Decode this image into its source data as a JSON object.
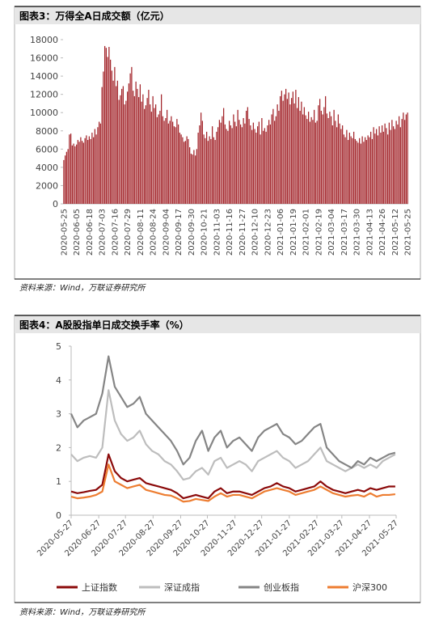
{
  "chart_data": [
    {
      "type": "bar",
      "title": "图表3：万得全A日成交额（亿元）",
      "source": "资料来源：Wind，万联证券研究所",
      "color": "#a3262c",
      "ylim": [
        0,
        18000
      ],
      "yticks": [
        0,
        2000,
        4000,
        6000,
        8000,
        10000,
        12000,
        14000,
        16000,
        18000
      ],
      "categories": [
        "2020-05-25",
        null,
        null,
        null,
        null,
        null,
        null,
        null,
        null,
        "2020-06-05",
        null,
        null,
        null,
        null,
        null,
        null,
        null,
        null,
        "2020-06-18",
        null,
        null,
        null,
        null,
        null,
        null,
        null,
        null,
        "2020-07-03",
        null,
        null,
        null,
        null,
        null,
        null,
        null,
        null,
        "2020-07-16",
        null,
        null,
        null,
        null,
        null,
        null,
        null,
        null,
        "2020-07-29",
        null,
        null,
        null,
        null,
        null,
        null,
        null,
        null,
        "2020-08-11",
        null,
        null,
        null,
        null,
        null,
        null,
        null,
        null,
        "2020-08-24",
        null,
        null,
        null,
        null,
        null,
        null,
        null,
        null,
        "2020-09-04",
        null,
        null,
        null,
        null,
        null,
        null,
        null,
        null,
        "2020-09-17",
        null,
        null,
        null,
        null,
        null,
        null,
        null,
        null,
        "2020-09-30",
        null,
        null,
        null,
        null,
        null,
        null,
        null,
        null,
        "2020-10-21",
        null,
        null,
        null,
        null,
        null,
        null,
        null,
        null,
        "2020-11-03",
        null,
        null,
        null,
        null,
        null,
        null,
        null,
        null,
        "2020-11-16",
        null,
        null,
        null,
        null,
        null,
        null,
        null,
        null,
        "2020-11-27",
        null,
        null,
        null,
        null,
        null,
        null,
        null,
        null,
        "2020-12-10",
        null,
        null,
        null,
        null,
        null,
        null,
        null,
        null,
        "2020-12-23",
        null,
        null,
        null,
        null,
        null,
        null,
        null,
        null,
        "2021-01-06",
        null,
        null,
        null,
        null,
        null,
        null,
        null,
        null,
        "2021-01-19",
        null,
        null,
        null,
        null,
        null,
        null,
        null,
        null,
        "2021-02-01",
        null,
        null,
        null,
        null,
        null,
        null,
        null,
        null,
        "2021-02-19",
        null,
        null,
        null,
        null,
        null,
        null,
        null,
        null,
        "2021-03-04",
        null,
        null,
        null,
        null,
        null,
        null,
        null,
        null,
        "2021-03-17",
        null,
        null,
        null,
        null,
        null,
        null,
        null,
        null,
        "2021-03-30",
        null,
        null,
        null,
        null,
        null,
        null,
        null,
        null,
        "2021-04-13",
        null,
        null,
        null,
        null,
        null,
        null,
        null,
        null,
        "2021-04-26",
        null,
        null,
        null,
        null,
        null,
        null,
        null,
        null,
        "2021-05-12",
        null,
        null,
        null,
        null,
        null,
        null,
        null,
        null,
        "2021-05-25"
      ],
      "values": [
        4800,
        5300,
        5700,
        6000,
        7600,
        7700,
        6400,
        6600,
        6300,
        6500,
        7000,
        6800,
        7300,
        6900,
        6700,
        7200,
        7500,
        7000,
        7400,
        7100,
        7800,
        7300,
        8200,
        7600,
        8400,
        9000,
        8800,
        12800,
        14500,
        17300,
        17100,
        16100,
        17200,
        15800,
        14600,
        13500,
        15000,
        12900,
        13500,
        11400,
        11900,
        12600,
        12900,
        10900,
        11300,
        12300,
        13200,
        14300,
        15000,
        12400,
        11800,
        13400,
        12600,
        11700,
        13100,
        11200,
        12000,
        10400,
        10800,
        11600,
        12500,
        10900,
        10100,
        11800,
        10500,
        10900,
        9500,
        9800,
        10200,
        12000,
        9600,
        9100,
        9400,
        10300,
        8800,
        9100,
        9600,
        9000,
        8500,
        8400,
        9300,
        8700,
        7800,
        7600,
        7300,
        6800,
        6900,
        7400,
        7100,
        6200,
        5500,
        5400,
        5900,
        5300,
        6000,
        7800,
        8600,
        10000,
        9100,
        7600,
        7200,
        7900,
        6900,
        7400,
        7100,
        8500,
        7300,
        7000,
        7900,
        8400,
        9200,
        8900,
        9600,
        10500,
        8700,
        8200,
        8000,
        9100,
        8600,
        8300,
        9800,
        9000,
        8500,
        10300,
        9200,
        8700,
        8400,
        9400,
        8800,
        10200,
        10600,
        9300,
        8600,
        8100,
        8900,
        8200,
        7800,
        8500,
        9000,
        7600,
        9400,
        8000,
        8300,
        7900,
        8600,
        9200,
        8700,
        9800,
        10400,
        9100,
        9600,
        10900,
        10200,
        11800,
        12400,
        11300,
        12000,
        12600,
        11500,
        12200,
        10900,
        11600,
        12300,
        11000,
        12500,
        10500,
        11700,
        10200,
        11200,
        9800,
        10600,
        9700,
        9300,
        10100,
        9000,
        9500,
        9200,
        10300,
        8900,
        9100,
        10800,
        11500,
        10200,
        9800,
        10600,
        11800,
        9900,
        9400,
        10100,
        9600,
        8600,
        10300,
        9100,
        8400,
        9800,
        8800,
        8200,
        8600,
        7600,
        7300,
        8100,
        7000,
        7800,
        7400,
        7200,
        7900,
        7100,
        6900,
        6700,
        7200,
        6600,
        7400,
        6800,
        7300,
        7000,
        7500,
        7300,
        7900,
        7100,
        8400,
        7700,
        8200,
        7500,
        8500,
        7800,
        8600,
        7900,
        8800,
        8300,
        7600,
        8900,
        8100,
        9200,
        8500,
        8200,
        9100,
        8700,
        9600,
        8400,
        9300,
        10000,
        9200,
        9800,
        10000
      ]
    },
    {
      "type": "line",
      "title": "图表4：A股股指单日成交换手率（%）",
      "source": "资料来源：Wind，万联证券研究所",
      "ylim": [
        0,
        5
      ],
      "yticks": [
        0,
        1,
        2,
        3,
        4,
        5
      ],
      "xlim": [
        "2020-05-27",
        "2021-05-27"
      ],
      "xticks": [
        "2020-05-27",
        "2020-06-27",
        "2020-07-27",
        "2020-08-27",
        "2020-09-27",
        "2020-10-27",
        "2020-11-27",
        "2020-12-27",
        "2021-01-27",
        "2021-02-27",
        "2021-03-27",
        "2021-04-27",
        "2021-05-27"
      ],
      "x": [
        "2020-05-27",
        "2020-06-03",
        "2020-06-10",
        "2020-06-17",
        "2020-06-24",
        "2020-07-01",
        "2020-07-08",
        "2020-07-15",
        "2020-07-22",
        "2020-07-29",
        "2020-08-05",
        "2020-08-12",
        "2020-08-19",
        "2020-08-26",
        "2020-09-02",
        "2020-09-09",
        "2020-09-16",
        "2020-09-23",
        "2020-09-30",
        "2020-10-07",
        "2020-10-14",
        "2020-10-21",
        "2020-10-28",
        "2020-11-04",
        "2020-11-11",
        "2020-11-18",
        "2020-11-25",
        "2020-12-02",
        "2020-12-09",
        "2020-12-16",
        "2020-12-23",
        "2020-12-30",
        "2021-01-06",
        "2021-01-13",
        "2021-01-20",
        "2021-01-27",
        "2021-02-03",
        "2021-02-10",
        "2021-02-17",
        "2021-02-24",
        "2021-03-03",
        "2021-03-10",
        "2021-03-17",
        "2021-03-24",
        "2021-03-31",
        "2021-04-07",
        "2021-04-14",
        "2021-04-21",
        "2021-04-28",
        "2021-05-05",
        "2021-05-12",
        "2021-05-19",
        "2021-05-26"
      ],
      "series": [
        {
          "name": "上证指数",
          "color": "#8b0a0a",
          "values": [
            0.7,
            0.65,
            0.68,
            0.72,
            0.75,
            0.9,
            1.8,
            1.3,
            1.1,
            1.0,
            1.05,
            1.1,
            0.95,
            0.9,
            0.85,
            0.8,
            0.75,
            0.65,
            0.5,
            0.55,
            0.6,
            0.55,
            0.5,
            0.7,
            0.8,
            0.65,
            0.7,
            0.7,
            0.65,
            0.6,
            0.7,
            0.8,
            0.85,
            0.95,
            0.85,
            0.8,
            0.7,
            0.75,
            0.8,
            0.85,
            1.0,
            0.85,
            0.75,
            0.7,
            0.65,
            0.7,
            0.75,
            0.7,
            0.8,
            0.75,
            0.8,
            0.85,
            0.85
          ]
        },
        {
          "name": "深证成指",
          "color": "#bdbdbd",
          "values": [
            1.8,
            1.6,
            1.7,
            1.75,
            1.7,
            2.0,
            3.7,
            2.8,
            2.4,
            2.2,
            2.3,
            2.5,
            2.1,
            1.9,
            1.8,
            1.6,
            1.5,
            1.3,
            1.05,
            1.1,
            1.3,
            1.4,
            1.2,
            1.6,
            1.7,
            1.4,
            1.5,
            1.6,
            1.5,
            1.3,
            1.6,
            1.7,
            1.8,
            1.9,
            1.7,
            1.6,
            1.4,
            1.5,
            1.6,
            1.8,
            2.0,
            1.6,
            1.5,
            1.4,
            1.3,
            1.4,
            1.5,
            1.4,
            1.5,
            1.4,
            1.6,
            1.7,
            1.8
          ]
        },
        {
          "name": "创业板指",
          "color": "#858585",
          "values": [
            3.0,
            2.6,
            2.8,
            2.9,
            3.0,
            3.6,
            4.7,
            3.8,
            3.5,
            3.2,
            3.3,
            3.5,
            3.0,
            2.8,
            2.6,
            2.4,
            2.2,
            1.9,
            1.5,
            1.7,
            2.2,
            2.5,
            1.9,
            2.3,
            2.5,
            2.0,
            2.2,
            2.3,
            2.1,
            1.9,
            2.3,
            2.5,
            2.6,
            2.7,
            2.4,
            2.3,
            2.1,
            2.2,
            2.4,
            2.6,
            2.7,
            2.0,
            1.8,
            1.6,
            1.5,
            1.4,
            1.6,
            1.5,
            1.7,
            1.6,
            1.7,
            1.8,
            1.85
          ]
        },
        {
          "name": "沪深300",
          "color": "#ed7d31",
          "values": [
            0.55,
            0.5,
            0.52,
            0.55,
            0.6,
            0.7,
            1.5,
            1.0,
            0.9,
            0.8,
            0.85,
            0.9,
            0.75,
            0.7,
            0.65,
            0.6,
            0.58,
            0.5,
            0.4,
            0.42,
            0.48,
            0.45,
            0.42,
            0.55,
            0.65,
            0.55,
            0.6,
            0.6,
            0.55,
            0.5,
            0.6,
            0.7,
            0.75,
            0.8,
            0.75,
            0.7,
            0.6,
            0.65,
            0.7,
            0.75,
            0.85,
            0.75,
            0.65,
            0.6,
            0.55,
            0.58,
            0.6,
            0.55,
            0.65,
            0.55,
            0.6,
            0.6,
            0.62
          ]
        }
      ]
    }
  ]
}
